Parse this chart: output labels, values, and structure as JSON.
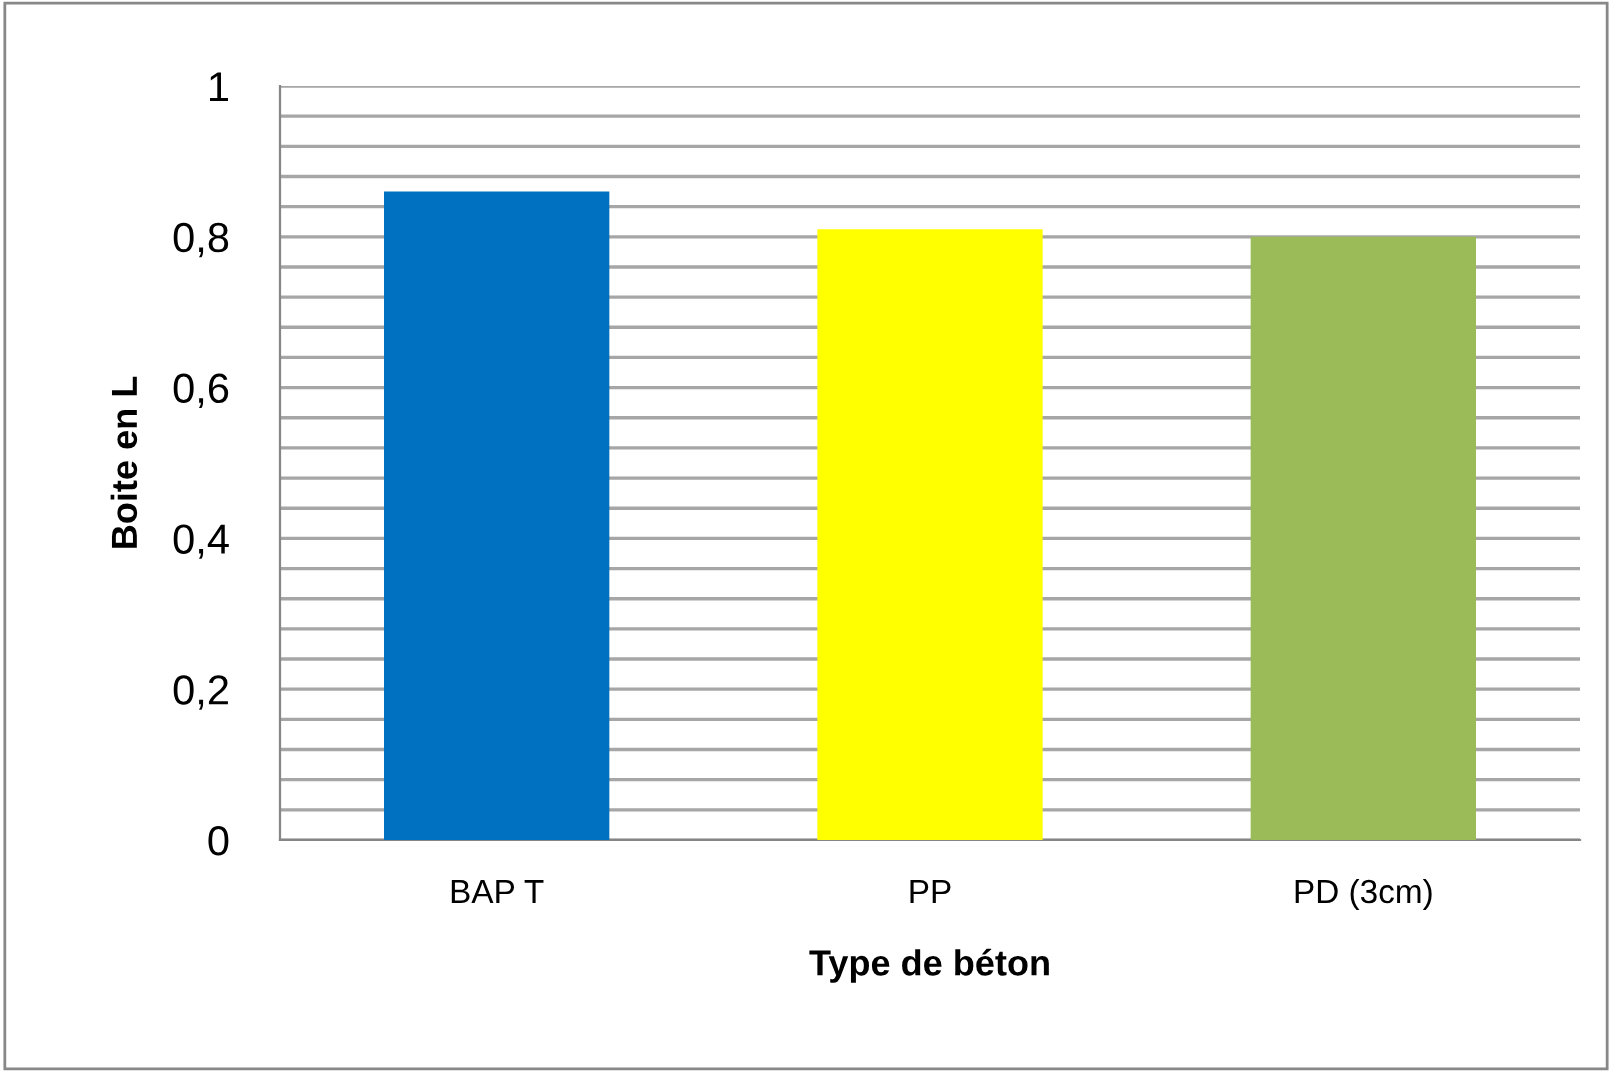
{
  "chart_data": {
    "type": "bar",
    "xlabel": "Type de béton",
    "ylabel": "Boite en L",
    "categories": [
      "BAP T",
      "PP",
      "PD (3cm)"
    ],
    "values": [
      0.86,
      0.81,
      0.8
    ],
    "colors": [
      "#0070c0",
      "#ffff00",
      "#9bbb59"
    ],
    "ylim": [
      0,
      1
    ],
    "yticks": [
      {
        "value": 0,
        "label": "0"
      },
      {
        "value": 0.04,
        "label": null
      },
      {
        "value": 0.08,
        "label": null
      },
      {
        "value": 0.12,
        "label": null
      },
      {
        "value": 0.16,
        "label": null
      },
      {
        "value": 0.2,
        "label": "0,2"
      },
      {
        "value": 0.24,
        "label": null
      },
      {
        "value": 0.28,
        "label": null
      },
      {
        "value": 0.32,
        "label": null
      },
      {
        "value": 0.36,
        "label": null
      },
      {
        "value": 0.4,
        "label": "0,4"
      },
      {
        "value": 0.44,
        "label": null
      },
      {
        "value": 0.48,
        "label": null
      },
      {
        "value": 0.52,
        "label": null
      },
      {
        "value": 0.56,
        "label": null
      },
      {
        "value": 0.6,
        "label": "0,6"
      },
      {
        "value": 0.64,
        "label": null
      },
      {
        "value": 0.68,
        "label": null
      },
      {
        "value": 0.72,
        "label": null
      },
      {
        "value": 0.76,
        "label": null
      },
      {
        "value": 0.8,
        "label": "0,8"
      },
      {
        "value": 0.84,
        "label": null
      },
      {
        "value": 0.88,
        "label": null
      },
      {
        "value": 0.92,
        "label": null
      },
      {
        "value": 0.96,
        "label": null
      },
      {
        "value": 1,
        "label": "1"
      }
    ],
    "grid": "y"
  }
}
